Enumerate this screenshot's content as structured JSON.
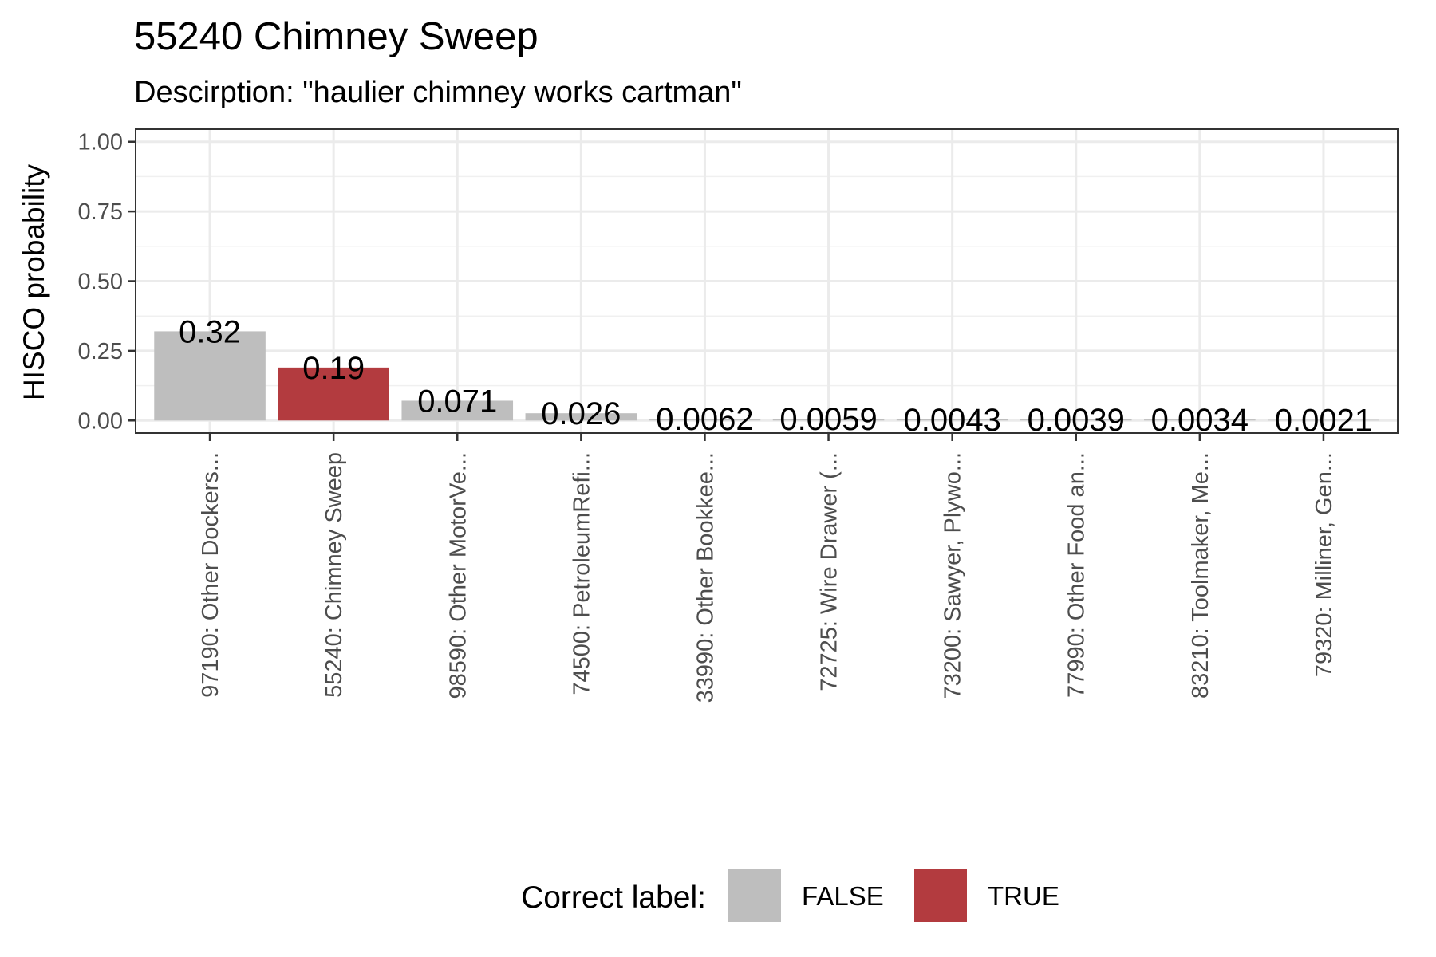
{
  "chart_data": {
    "type": "bar",
    "title": "55240 Chimney Sweep",
    "subtitle": "Descirption: \"haulier chimney works cartman\"",
    "xlabel": "",
    "ylabel": "HISCO probability",
    "ylim": [
      0,
      1
    ],
    "yticks": [
      "0.00",
      "0.25",
      "0.50",
      "0.75",
      "1.00"
    ],
    "ytick_values": [
      0,
      0.25,
      0.5,
      0.75,
      1.0
    ],
    "categories": [
      "97190: Other Dockers...",
      "55240: Chimney Sweep",
      "98590: Other MotorVe...",
      "74500: PetroleumRefi...",
      "33990: Other Bookkee...",
      "72725: Wire Drawer (...",
      "73200: Sawyer, Plywo...",
      "77990: Other Food an...",
      "83210: Toolmaker, Me...",
      "79320: Milliner, Gen..."
    ],
    "values": [
      0.32,
      0.19,
      0.071,
      0.026,
      0.0062,
      0.0059,
      0.0043,
      0.0039,
      0.0034,
      0.0021
    ],
    "value_labels": [
      "0.32",
      "0.19",
      "0.071",
      "0.026",
      "0.0062",
      "0.0059",
      "0.0043",
      "0.0039",
      "0.0034",
      "0.0021"
    ],
    "correct": [
      false,
      true,
      false,
      false,
      false,
      false,
      false,
      false,
      false,
      false
    ],
    "grid": true,
    "legend": {
      "title": "Correct label:",
      "position": "bottom",
      "entries": [
        {
          "label": "FALSE",
          "color": "#bebebe"
        },
        {
          "label": "TRUE",
          "color": "#b33b3f"
        }
      ]
    },
    "colors": {
      "false": "#bebebe",
      "true": "#b33b3f"
    }
  }
}
